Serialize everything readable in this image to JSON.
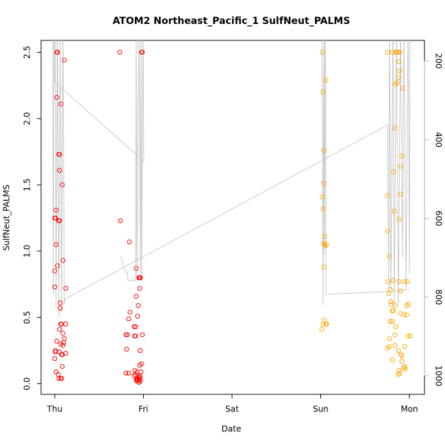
{
  "chart_data": {
    "type": "scatter",
    "title": "ATOM2 Northeast_Pacific_1 SulfNeut_PALMS",
    "x_label": "Date",
    "y_label": "SulfNeut_PALMS",
    "xlim": [
      -0.154,
      4.17
    ],
    "xticks": [
      {
        "value": 0,
        "label": "Thu"
      },
      {
        "value": 1,
        "label": "Fri"
      },
      {
        "value": 2,
        "label": "Sat"
      },
      {
        "value": 3,
        "label": "Sun"
      },
      {
        "value": 4,
        "label": "Mon"
      }
    ],
    "ylim": [
      -0.08,
      2.59
    ],
    "yticks": [
      {
        "value": 0,
        "label": "0.0"
      },
      0.5,
      {
        "value": 1,
        "label": "1.0"
      },
      1.5,
      {
        "value": 2,
        "label": "2.0"
      },
      2.5
    ],
    "y2lim": [
      1047,
      148
    ],
    "y2ticks": [
      200,
      400,
      600,
      800,
      1000
    ],
    "series": [
      {
        "color": "#ff0000",
        "x": [
          0.023,
          0.031,
          0.108,
          0.023,
          0.069,
          0.046,
          0.054,
          0.054,
          0.085,
          0,
          0.008,
          0.015,
          0.046,
          0.054,
          0.015,
          0.031,
          0.093,
          0,
          0,
          0.124,
          0.062,
          0.062,
          0.069,
          0.077,
          0.124,
          0.054,
          0.093,
          0.108,
          0.023,
          0.1,
          0.069,
          0.093,
          0.008,
          0.008,
          0.054,
          0.077,
          0.085,
          0,
          0.124,
          0.085,
          0.015,
          0.039,
          0.046,
          0.069,
          0.077,
          0.734,
          0.981,
          0.988,
          0.741,
          0.842,
          0.919,
          0.95,
          0.958,
          0.965,
          0.958,
          0.919,
          0.942,
          0.849,
          0.834,
          0.934,
          0.896,
          0.911,
          0.803,
          0.819,
          0.988,
          0.903,
          0.911,
          0.811,
          0.965,
          0.981,
          0.958,
          0.803,
          0.834,
          0.903,
          0.927,
          0.973,
          0.911,
          0.896,
          0.958,
          0.942,
          0.965,
          0.927,
          0.95,
          0.919,
          0.934,
          0.958,
          0.927,
          0.965,
          0.95
        ],
        "values": [
          2.5,
          2.5,
          2.44,
          2.16,
          2.11,
          1.73,
          1.73,
          1.61,
          1.5,
          1.25,
          1.25,
          1.31,
          1.23,
          1.23,
          1.05,
          0.89,
          0.93,
          0.85,
          0.73,
          0.72,
          0.61,
          0.57,
          0.45,
          0.45,
          0.45,
          0.41,
          0.38,
          0.34,
          0.32,
          0.31,
          0.3,
          0.29,
          0.25,
          0.24,
          0.24,
          0.22,
          0.22,
          0.19,
          0.23,
          0.13,
          0.09,
          0.07,
          0.04,
          0.04,
          0.04,
          2.5,
          2.5,
          2.5,
          1.23,
          1.07,
          0.87,
          0.8,
          0.8,
          0.8,
          0.72,
          0.66,
          0.59,
          0.54,
          0.49,
          0.51,
          0.43,
          0.43,
          0.37,
          0.37,
          0.37,
          0.36,
          0.36,
          0.26,
          0.25,
          0.15,
          0.14,
          0.08,
          0.08,
          0.1,
          0.09,
          0.09,
          0.07,
          0.06,
          0.06,
          0.05,
          0.05,
          0.04,
          0.04,
          0.03,
          0.03,
          0.03,
          0.02,
          0.02,
          0.01
        ]
      },
      {
        "color": "#ffa500",
        "x": [
          3.019,
          3.058,
          3.027,
          3.035,
          3.035,
          3.019,
          3.027,
          3.042,
          3.035,
          3.042,
          3.066,
          3.05,
          3.035,
          3.042,
          3.058,
          3.027,
          3.066,
          3.012,
          3.753,
          3.807,
          3.846,
          3.861,
          3.876,
          3.892,
          3.884,
          3.892,
          3.876,
          3.861,
          3.846,
          3.923,
          3.83,
          3.915,
          3.9,
          3.822,
          3.753,
          3.9,
          3.83,
          3.884,
          3.753,
          3.776,
          3.815,
          3.761,
          3.884,
          3.946,
          3.977,
          3.784,
          3.768,
          3.9,
          3.792,
          3.799,
          3.838,
          3.969,
          3.992,
          3.815,
          3.807,
          3.9,
          3.938,
          3.969,
          3.807,
          3.784,
          3.846,
          3.838,
          3.985,
          4.008,
          3.776,
          3.838,
          3.946,
          3.776,
          3.753,
          3.876,
          3.907,
          3.915,
          3.807,
          3.915,
          3.946,
          3.938,
          3.954,
          3.884,
          3.892,
          3.876
        ],
        "values": [
          2.5,
          2.29,
          2.2,
          1.76,
          1.51,
          1.41,
          1.32,
          1.11,
          1.06,
          1.05,
          1.05,
          1.04,
          0.88,
          0.48,
          0.45,
          0.45,
          0.45,
          0.41,
          2.5,
          2.5,
          2.5,
          2.5,
          2.5,
          2.5,
          2.43,
          2.36,
          2.31,
          2.27,
          2.26,
          2.23,
          1.93,
          1.72,
          1.64,
          1.6,
          1.42,
          1.43,
          1.3,
          1.24,
          1.15,
          0.96,
          0.78,
          0.77,
          0.77,
          0.77,
          0.77,
          0.71,
          0.68,
          0.7,
          0.62,
          0.6,
          0.59,
          0.59,
          0.6,
          0.55,
          0.55,
          0.53,
          0.52,
          0.52,
          0.47,
          0.47,
          0.43,
          0.37,
          0.36,
          0.36,
          0.34,
          0.29,
          0.28,
          0.28,
          0.27,
          0.25,
          0.22,
          0.21,
          0.18,
          0.17,
          0.13,
          0.12,
          0.11,
          0.1,
          0.08,
          0.07
        ]
      },
      {
        "color": "#c8c8c8",
        "axis": "y2",
        "kind": "line",
        "x": [
          -0.023,
          -0.015,
          -0.008,
          0,
          1.004,
          0.996,
          0.981,
          0.973,
          0.965,
          0.95,
          0.927,
          0.919,
          0.911,
          null,
          0.008,
          0.015,
          0.031,
          0.046,
          0.062,
          0.077,
          0.093,
          0.108,
          0.116,
          3.753,
          3.768,
          3.776,
          3.792,
          3.815,
          3.83,
          3.853,
          3.876,
          3.9,
          3.923,
          3.938,
          3.961,
          3.985,
          4.0,
          4.008,
          null,
          0.741,
          0.803,
          0.819,
          0.826,
          0.903,
          null,
          3.012,
          3.027,
          3.035,
          3.042,
          3.05,
          3.058,
          3.058,
          3.05,
          3.768,
          4.0
        ],
        "values": [
          100,
          800,
          100,
          254,
          455,
          100,
          760,
          100,
          760,
          100,
          760,
          100,
          760,
          null,
          100,
          830,
          100,
          850,
          100,
          840,
          100,
          820,
          805,
          363,
          780,
          100,
          780,
          100,
          820,
          100,
          820,
          100,
          700,
          100,
          780,
          100,
          740,
          100,
          null,
          696,
          737,
          737,
          758,
          758,
          null,
          100,
          820,
          100,
          690,
          100,
          320,
          793,
          793,
          786,
          781
        ]
      }
    ]
  }
}
